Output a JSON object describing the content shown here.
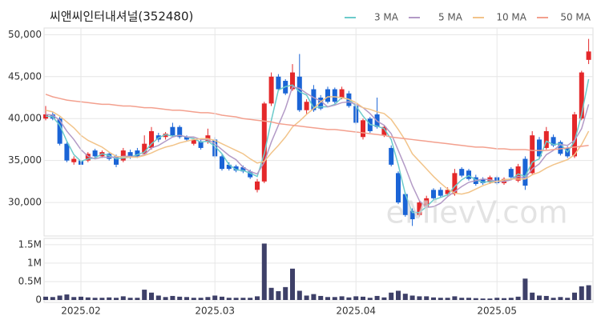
{
  "chart_data": [
    {
      "type": "candlestick",
      "title": "씨앤씨인터내셔널(352480)",
      "watermark": "eMievV.com",
      "up_color": "#e4282a",
      "down_color": "#1a64d6",
      "grid": true,
      "ylim": [
        26000,
        50800
      ],
      "yticks": [
        {
          "value": 30000,
          "label": "30,000"
        },
        {
          "value": 35000,
          "label": "35,000"
        },
        {
          "value": 40000,
          "label": "40,000"
        },
        {
          "value": 45000,
          "label": "45,000"
        },
        {
          "value": 50000,
          "label": "50,000"
        }
      ],
      "open": [
        40000,
        40500,
        40000,
        37000,
        34800,
        35000,
        35000,
        36200,
        35500,
        35800,
        35500,
        35000,
        36000,
        36200,
        35800,
        36500,
        38000,
        37800,
        39000,
        39000,
        37800,
        37000,
        37300,
        37200,
        37500,
        35500,
        34500,
        34300,
        34200,
        33700,
        31500,
        32500,
        41800,
        45000,
        44500,
        43500,
        45000,
        41000,
        43500,
        42500,
        43500,
        43500,
        42500,
        43000,
        41500,
        37800,
        40000,
        40500,
        38000,
        36500,
        33500,
        31000,
        29000,
        28500,
        29500,
        31500,
        31500,
        31000,
        31000,
        34000,
        33800,
        33000,
        32800,
        32400,
        33000,
        32300,
        34000,
        32600,
        35200,
        33500,
        37500,
        36500,
        37800,
        37200,
        36500,
        35500,
        40000,
        47000
      ],
      "high": [
        41500,
        40800,
        40200,
        37200,
        35500,
        35300,
        36000,
        36400,
        36200,
        36000,
        35700,
        36500,
        36300,
        36500,
        38000,
        39000,
        38300,
        38400,
        39500,
        39200,
        38000,
        37700,
        37500,
        38800,
        37800,
        35700,
        34800,
        34500,
        34400,
        33900,
        32800,
        42000,
        45500,
        45300,
        44700,
        46500,
        47700,
        42300,
        44000,
        42800,
        43800,
        43700,
        43800,
        43300,
        41700,
        40000,
        40200,
        42500,
        39200,
        36800,
        33700,
        31200,
        29300,
        30200,
        30800,
        31700,
        31800,
        31800,
        34000,
        34200,
        34000,
        33300,
        33000,
        33200,
        33200,
        33000,
        34200,
        34600,
        35500,
        38500,
        37800,
        39000,
        38100,
        37400,
        36700,
        40800,
        45700,
        49500
      ],
      "low": [
        39800,
        39800,
        36800,
        34800,
        34500,
        32700,
        34800,
        35300,
        35300,
        35000,
        34200,
        34800,
        35200,
        35300,
        35600,
        36300,
        37200,
        37500,
        37800,
        37600,
        37300,
        36800,
        36300,
        37000,
        35300,
        33800,
        33800,
        33600,
        33500,
        32800,
        31200,
        32300,
        41500,
        43300,
        42800,
        43300,
        40800,
        40500,
        40800,
        41000,
        41800,
        41800,
        42300,
        41300,
        39300,
        37500,
        38300,
        38800,
        37800,
        34300,
        29800,
        28300,
        27200,
        28300,
        29300,
        30300,
        30600,
        30800,
        30800,
        33000,
        32600,
        32000,
        32100,
        32200,
        32100,
        32100,
        32800,
        32400,
        31500,
        33300,
        35300,
        36300,
        36600,
        35600,
        35300,
        35300,
        39800,
        46500
      ],
      "close": [
        40500,
        40000,
        37000,
        35000,
        35200,
        34500,
        35800,
        35500,
        36000,
        35200,
        34500,
        36200,
        35400,
        35500,
        37000,
        38500,
        37500,
        38200,
        38000,
        37800,
        37500,
        37500,
        36500,
        38000,
        35500,
        34000,
        34000,
        33800,
        33700,
        33000,
        32500,
        41800,
        45000,
        43500,
        43000,
        45500,
        41000,
        42000,
        41000,
        41200,
        42000,
        42000,
        43500,
        41500,
        39500,
        39800,
        38500,
        39000,
        39000,
        34500,
        30000,
        28500,
        28000,
        30000,
        30500,
        30500,
        30800,
        31500,
        33500,
        33200,
        32800,
        32200,
        32300,
        33000,
        32300,
        32800,
        33000,
        34300,
        32000,
        38000,
        35500,
        38500,
        36800,
        35800,
        35500,
        40500,
        45500,
        48000
      ],
      "series": [
        {
          "name": "3 MA",
          "color": "#6ccbcb",
          "values": [
            40300,
            40200,
            39200,
            37300,
            35700,
            34900,
            35200,
            35300,
            35800,
            35600,
            35200,
            35300,
            35400,
            35700,
            36000,
            37000,
            37700,
            38100,
            37900,
            38000,
            37800,
            37600,
            37200,
            37300,
            36700,
            35800,
            34500,
            33900,
            33800,
            33500,
            33100,
            35800,
            39800,
            43400,
            43800,
            44000,
            43200,
            42800,
            41300,
            41400,
            41400,
            41700,
            42500,
            42300,
            41500,
            40300,
            39300,
            39100,
            38800,
            37500,
            34500,
            31000,
            28800,
            28800,
            29500,
            30300,
            30600,
            30900,
            31900,
            32700,
            33200,
            32700,
            32400,
            32500,
            32500,
            32700,
            32700,
            33400,
            33100,
            34800,
            35200,
            37300,
            36900,
            37000,
            36000,
            37300,
            40500,
            44700
          ]
        },
        {
          "name": "5 MA",
          "color": "#b39ac6",
          "values": [
            40500,
            40400,
            39800,
            38500,
            37500,
            36300,
            35500,
            35200,
            35400,
            35400,
            35400,
            35500,
            35500,
            35400,
            35700,
            36500,
            36800,
            37300,
            37800,
            38000,
            37800,
            37800,
            37500,
            37500,
            37000,
            36300,
            35600,
            35100,
            34200,
            33700,
            33400,
            34800,
            37200,
            39200,
            41200,
            43800,
            43600,
            43000,
            42500,
            42100,
            41400,
            41600,
            41900,
            42000,
            41700,
            41300,
            40600,
            39700,
            39200,
            38200,
            36200,
            34200,
            32000,
            30200,
            29400,
            29500,
            29900,
            30700,
            31300,
            31900,
            32400,
            32600,
            32800,
            32700,
            32500,
            32500,
            32700,
            33100,
            32900,
            34000,
            34600,
            35700,
            36200,
            36900,
            36800,
            37400,
            38800,
            41700
          ]
        },
        {
          "name": "10 MA",
          "color": "#f2c48a",
          "values": [
            41000,
            40800,
            40300,
            39600,
            38900,
            38000,
            37400,
            37000,
            36600,
            36000,
            35500,
            35400,
            35400,
            35400,
            35600,
            35900,
            36300,
            36600,
            36800,
            37100,
            37300,
            37500,
            37600,
            37600,
            37400,
            37000,
            36600,
            36200,
            35800,
            35200,
            34700,
            34900,
            35900,
            36800,
            37800,
            39000,
            39700,
            40500,
            41200,
            42000,
            42600,
            42600,
            42500,
            42300,
            41900,
            41300,
            41100,
            40800,
            40600,
            39900,
            38700,
            37400,
            35800,
            34900,
            34000,
            33100,
            32300,
            31600,
            31100,
            31000,
            31200,
            31600,
            32000,
            32300,
            32500,
            32700,
            32800,
            32800,
            32800,
            33300,
            33600,
            34100,
            34500,
            34800,
            35100,
            35700,
            36900,
            38500
          ]
        },
        {
          "name": "50 MA",
          "color": "#f3a08e",
          "values": [
            42900,
            42600,
            42400,
            42200,
            42100,
            42000,
            41900,
            41800,
            41700,
            41700,
            41600,
            41500,
            41500,
            41400,
            41300,
            41300,
            41200,
            41100,
            41000,
            41000,
            40900,
            40800,
            40700,
            40700,
            40600,
            40400,
            40300,
            40200,
            40000,
            39900,
            39800,
            39700,
            39600,
            39400,
            39300,
            39200,
            39100,
            39000,
            38900,
            38800,
            38700,
            38700,
            38600,
            38500,
            38400,
            38300,
            38200,
            38100,
            38000,
            37800,
            37700,
            37600,
            37500,
            37400,
            37300,
            37200,
            37100,
            37000,
            36900,
            36800,
            36700,
            36600,
            36600,
            36500,
            36400,
            36400,
            36300,
            36300,
            36300,
            36200,
            36200,
            36200,
            36300,
            36400,
            36500,
            36600,
            36700,
            36800
          ]
        }
      ]
    },
    {
      "type": "bar",
      "color": "#3e4068",
      "grid": true,
      "categories": [
        null,
        null,
        null,
        null,
        null,
        "2025.02",
        null,
        null,
        null,
        null,
        null,
        null,
        null,
        null,
        null,
        null,
        null,
        null,
        null,
        null,
        null,
        null,
        null,
        null,
        "2025.03",
        null,
        null,
        null,
        null,
        null,
        null,
        null,
        null,
        null,
        null,
        null,
        null,
        null,
        null,
        null,
        null,
        null,
        null,
        null,
        "2025.04",
        null,
        null,
        null,
        null,
        null,
        null,
        null,
        null,
        null,
        null,
        null,
        null,
        null,
        null,
        null,
        null,
        null,
        null,
        null,
        "2025.05",
        null,
        null,
        null,
        null,
        null,
        null,
        null,
        null,
        null,
        null,
        null,
        null,
        null
      ],
      "values": [
        90000,
        80000,
        120000,
        150000,
        80000,
        90000,
        70000,
        60000,
        60000,
        70000,
        60000,
        100000,
        60000,
        60000,
        280000,
        200000,
        120000,
        80000,
        110000,
        90000,
        80000,
        60000,
        60000,
        80000,
        120000,
        90000,
        60000,
        60000,
        60000,
        60000,
        100000,
        1530000,
        330000,
        240000,
        350000,
        850000,
        250000,
        120000,
        160000,
        110000,
        80000,
        80000,
        100000,
        70000,
        100000,
        90000,
        60000,
        110000,
        70000,
        200000,
        250000,
        170000,
        120000,
        100000,
        100000,
        70000,
        60000,
        60000,
        100000,
        60000,
        60000,
        50000,
        40000,
        40000,
        60000,
        50000,
        60000,
        90000,
        580000,
        200000,
        120000,
        110000,
        60000,
        80000,
        60000,
        200000,
        370000,
        400000
      ],
      "ylim": [
        -65000,
        1670000
      ],
      "yticks": [
        0,
        {
          "value": 500000,
          "label": "0.5M"
        },
        {
          "value": 1000000,
          "label": "1M"
        },
        {
          "value": 1500000,
          "label": "1.5M"
        }
      ]
    }
  ]
}
